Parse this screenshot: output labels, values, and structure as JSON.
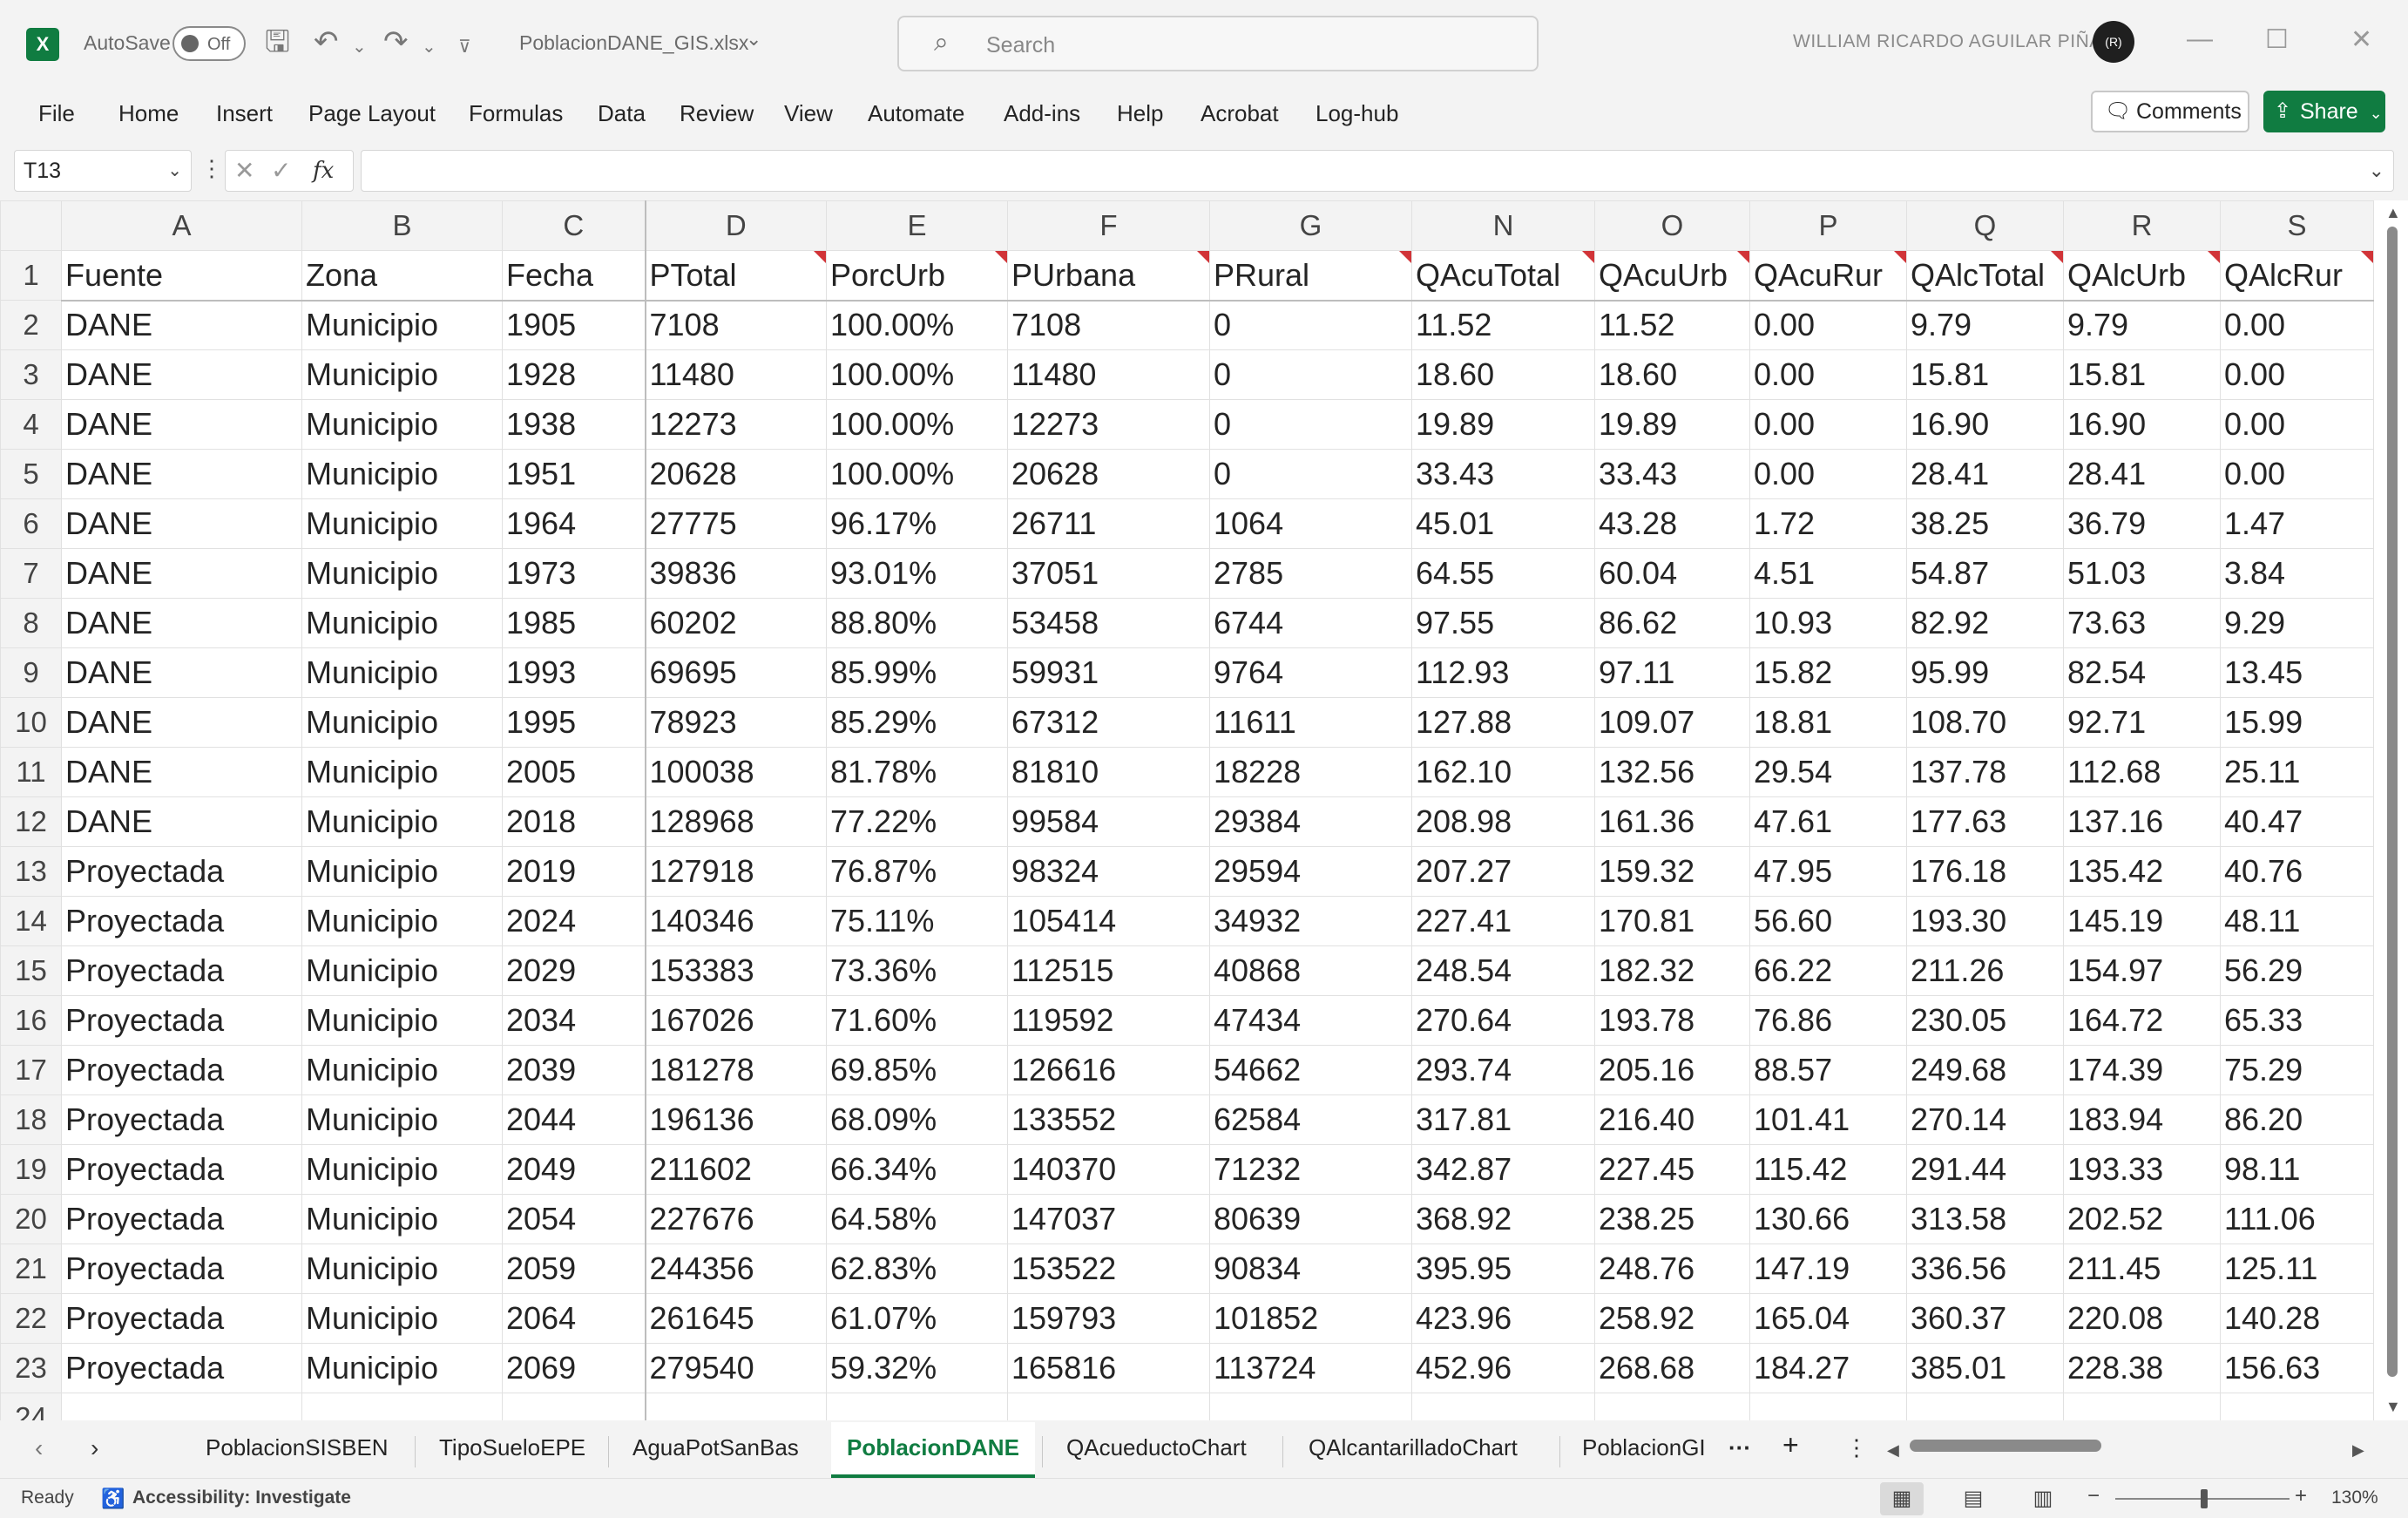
{
  "app": {
    "autosave_label": "AutoSave",
    "autosave_state": "Off",
    "filename": "PoblacionDANE_GIS.xlsx",
    "search_placeholder": "Search",
    "user_name": "WILLIAM RICARDO AGUILAR PIÑA",
    "avatar_text": "(R)"
  },
  "menu": [
    "File",
    "Home",
    "Insert",
    "Page Layout",
    "Formulas",
    "Data",
    "Review",
    "View",
    "Automate",
    "Add-ins",
    "Help",
    "Acrobat",
    "Log-hub"
  ],
  "actions": {
    "comments": "Comments",
    "share": "Share"
  },
  "formula_bar": {
    "cell_ref": "T13",
    "fx": "fx",
    "value": ""
  },
  "columns": [
    "A",
    "B",
    "C",
    "D",
    "E",
    "F",
    "G",
    "N",
    "O",
    "P",
    "Q",
    "R",
    "S"
  ],
  "headers": [
    "Fuente",
    "Zona",
    "Fecha",
    "PTotal",
    "PorcUrb",
    "PUrbana",
    "PRural",
    "QAcuTotal",
    "QAcuUrb",
    "QAcuRur",
    "QAlcTotal",
    "QAlcUrb",
    "QAlcRur"
  ],
  "rows": [
    [
      "DANE",
      "Municipio",
      "1905",
      "7108",
      "100.00%",
      "7108",
      "0",
      "11.52",
      "11.52",
      "0.00",
      "9.79",
      "9.79",
      "0.00"
    ],
    [
      "DANE",
      "Municipio",
      "1928",
      "11480",
      "100.00%",
      "11480",
      "0",
      "18.60",
      "18.60",
      "0.00",
      "15.81",
      "15.81",
      "0.00"
    ],
    [
      "DANE",
      "Municipio",
      "1938",
      "12273",
      "100.00%",
      "12273",
      "0",
      "19.89",
      "19.89",
      "0.00",
      "16.90",
      "16.90",
      "0.00"
    ],
    [
      "DANE",
      "Municipio",
      "1951",
      "20628",
      "100.00%",
      "20628",
      "0",
      "33.43",
      "33.43",
      "0.00",
      "28.41",
      "28.41",
      "0.00"
    ],
    [
      "DANE",
      "Municipio",
      "1964",
      "27775",
      "96.17%",
      "26711",
      "1064",
      "45.01",
      "43.28",
      "1.72",
      "38.25",
      "36.79",
      "1.47"
    ],
    [
      "DANE",
      "Municipio",
      "1973",
      "39836",
      "93.01%",
      "37051",
      "2785",
      "64.55",
      "60.04",
      "4.51",
      "54.87",
      "51.03",
      "3.84"
    ],
    [
      "DANE",
      "Municipio",
      "1985",
      "60202",
      "88.80%",
      "53458",
      "6744",
      "97.55",
      "86.62",
      "10.93",
      "82.92",
      "73.63",
      "9.29"
    ],
    [
      "DANE",
      "Municipio",
      "1993",
      "69695",
      "85.99%",
      "59931",
      "9764",
      "112.93",
      "97.11",
      "15.82",
      "95.99",
      "82.54",
      "13.45"
    ],
    [
      "DANE",
      "Municipio",
      "1995",
      "78923",
      "85.29%",
      "67312",
      "11611",
      "127.88",
      "109.07",
      "18.81",
      "108.70",
      "92.71",
      "15.99"
    ],
    [
      "DANE",
      "Municipio",
      "2005",
      "100038",
      "81.78%",
      "81810",
      "18228",
      "162.10",
      "132.56",
      "29.54",
      "137.78",
      "112.68",
      "25.11"
    ],
    [
      "DANE",
      "Municipio",
      "2018",
      "128968",
      "77.22%",
      "99584",
      "29384",
      "208.98",
      "161.36",
      "47.61",
      "177.63",
      "137.16",
      "40.47"
    ],
    [
      "Proyectada",
      "Municipio",
      "2019",
      "127918",
      "76.87%",
      "98324",
      "29594",
      "207.27",
      "159.32",
      "47.95",
      "176.18",
      "135.42",
      "40.76"
    ],
    [
      "Proyectada",
      "Municipio",
      "2024",
      "140346",
      "75.11%",
      "105414",
      "34932",
      "227.41",
      "170.81",
      "56.60",
      "193.30",
      "145.19",
      "48.11"
    ],
    [
      "Proyectada",
      "Municipio",
      "2029",
      "153383",
      "73.36%",
      "112515",
      "40868",
      "248.54",
      "182.32",
      "66.22",
      "211.26",
      "154.97",
      "56.29"
    ],
    [
      "Proyectada",
      "Municipio",
      "2034",
      "167026",
      "71.60%",
      "119592",
      "47434",
      "270.64",
      "193.78",
      "76.86",
      "230.05",
      "164.72",
      "65.33"
    ],
    [
      "Proyectada",
      "Municipio",
      "2039",
      "181278",
      "69.85%",
      "126616",
      "54662",
      "293.74",
      "205.16",
      "88.57",
      "249.68",
      "174.39",
      "75.29"
    ],
    [
      "Proyectada",
      "Municipio",
      "2044",
      "196136",
      "68.09%",
      "133552",
      "62584",
      "317.81",
      "216.40",
      "101.41",
      "270.14",
      "183.94",
      "86.20"
    ],
    [
      "Proyectada",
      "Municipio",
      "2049",
      "211602",
      "66.34%",
      "140370",
      "71232",
      "342.87",
      "227.45",
      "115.42",
      "291.44",
      "193.33",
      "98.11"
    ],
    [
      "Proyectada",
      "Municipio",
      "2054",
      "227676",
      "64.58%",
      "147037",
      "80639",
      "368.92",
      "238.25",
      "130.66",
      "313.58",
      "202.52",
      "111.06"
    ],
    [
      "Proyectada",
      "Municipio",
      "2059",
      "244356",
      "62.83%",
      "153522",
      "90834",
      "395.95",
      "248.76",
      "147.19",
      "336.56",
      "211.45",
      "125.11"
    ],
    [
      "Proyectada",
      "Municipio",
      "2064",
      "261645",
      "61.07%",
      "159793",
      "101852",
      "423.96",
      "258.92",
      "165.04",
      "360.37",
      "220.08",
      "140.28"
    ],
    [
      "Proyectada",
      "Municipio",
      "2069",
      "279540",
      "59.32%",
      "165816",
      "113724",
      "452.96",
      "268.68",
      "184.27",
      "385.01",
      "228.38",
      "156.63"
    ]
  ],
  "last_row_number": "24",
  "sheets": [
    "PoblacionSISBEN",
    "TipoSueloEPE",
    "AguaPotSanBas",
    "PoblacionDANE",
    "QAcueductoChart",
    "QAlcantarilladoChart",
    "PoblacionGI"
  ],
  "active_sheet": "PoblacionDANE",
  "status": {
    "ready": "Ready",
    "accessibility": "Accessibility: Investigate",
    "zoom": "130%"
  },
  "colors": {
    "excel_green": "#107c41",
    "comment_marker": "#d13438"
  }
}
